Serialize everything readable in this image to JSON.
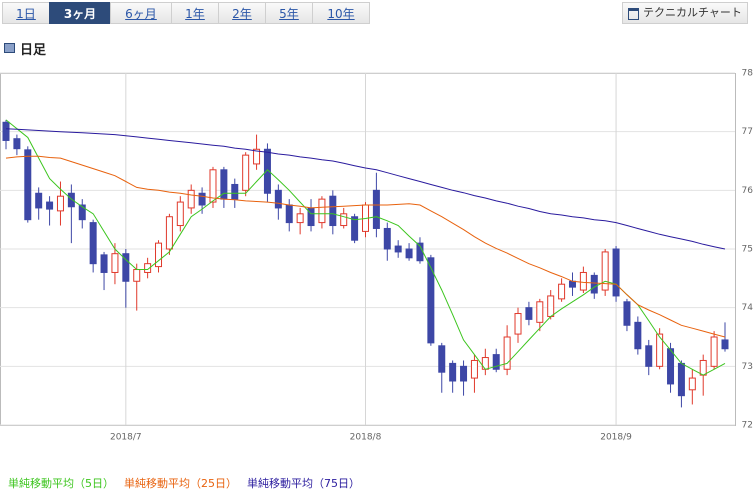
{
  "ui": {
    "tabs": [
      "1日",
      "3ヶ月",
      "6ヶ月",
      "1年",
      "2年",
      "5年",
      "10年"
    ],
    "active_tab": 1,
    "technical_button": "テクニカルチャート",
    "section": "日足"
  },
  "chart_data": {
    "type": "candlestick",
    "categories": [
      null,
      null,
      null,
      null,
      null,
      null,
      null,
      null,
      null,
      null,
      null,
      "2018/7",
      null,
      null,
      null,
      null,
      null,
      null,
      null,
      null,
      null,
      null,
      null,
      null,
      null,
      null,
      null,
      null,
      null,
      null,
      null,
      null,
      null,
      "2018/8",
      null,
      null,
      null,
      null,
      null,
      null,
      null,
      null,
      null,
      null,
      null,
      null,
      null,
      null,
      null,
      null,
      null,
      null,
      null,
      null,
      null,
      null,
      "2018/9",
      null,
      null,
      null,
      null,
      null,
      null,
      null,
      null,
      null,
      null
    ],
    "open": [
      77.16,
      76.88,
      76.69,
      75.95,
      75.8,
      75.65,
      75.95,
      75.75,
      75.45,
      74.9,
      74.6,
      74.92,
      74.45,
      74.6,
      74.7,
      75.0,
      75.4,
      75.7,
      75.95,
      75.8,
      76.35,
      76.1,
      76.0,
      76.45,
      76.7,
      76.0,
      75.75,
      75.45,
      75.7,
      75.45,
      75.9,
      75.4,
      75.55,
      75.3,
      76.0,
      75.35,
      75.05,
      75.0,
      75.1,
      74.85,
      73.35,
      73.05,
      73.0,
      72.8,
      72.95,
      73.2,
      72.95,
      73.55,
      74.0,
      73.75,
      73.85,
      74.15,
      74.45,
      74.3,
      74.55,
      74.3,
      75.0,
      74.1,
      73.75,
      73.35,
      73.0,
      73.3,
      73.05,
      72.6,
      72.85,
      73.0,
      73.45
    ],
    "high": [
      77.2,
      76.95,
      76.75,
      76.05,
      75.9,
      76.15,
      76.1,
      75.85,
      75.5,
      74.95,
      75.1,
      75.0,
      74.75,
      74.85,
      75.15,
      75.6,
      75.9,
      76.1,
      76.05,
      76.4,
      76.4,
      76.2,
      76.65,
      76.95,
      76.8,
      76.1,
      75.85,
      75.7,
      75.85,
      75.9,
      76.0,
      75.7,
      75.6,
      75.8,
      76.3,
      75.45,
      75.15,
      75.1,
      75.2,
      74.9,
      73.4,
      73.1,
      73.1,
      73.2,
      73.3,
      73.3,
      73.7,
      74.0,
      74.1,
      74.15,
      74.3,
      74.5,
      74.6,
      74.7,
      74.6,
      75.0,
      75.05,
      74.15,
      73.85,
      73.45,
      73.65,
      73.4,
      73.1,
      72.95,
      73.2,
      73.6,
      73.75
    ],
    "low": [
      76.7,
      76.6,
      75.45,
      75.5,
      75.4,
      75.4,
      75.1,
      75.35,
      74.6,
      74.3,
      74.4,
      74.0,
      73.95,
      74.5,
      74.6,
      74.9,
      75.3,
      75.6,
      75.6,
      75.7,
      75.7,
      75.7,
      75.9,
      76.35,
      75.8,
      75.5,
      75.3,
      75.25,
      75.3,
      75.35,
      75.25,
      75.35,
      75.1,
      75.2,
      75.2,
      74.8,
      74.85,
      74.8,
      74.75,
      73.35,
      72.55,
      72.55,
      72.5,
      72.55,
      72.85,
      72.9,
      72.85,
      73.4,
      73.7,
      73.6,
      73.8,
      74.1,
      74.2,
      74.25,
      74.15,
      74.2,
      74.1,
      73.6,
      73.2,
      72.85,
      72.95,
      72.55,
      72.3,
      72.35,
      72.5,
      72.95,
      73.25
    ],
    "close": [
      76.85,
      76.71,
      75.5,
      75.7,
      75.68,
      75.9,
      75.72,
      75.5,
      74.75,
      74.6,
      74.92,
      74.45,
      74.65,
      74.75,
      75.1,
      75.55,
      75.8,
      76.0,
      75.75,
      76.35,
      75.85,
      75.85,
      76.6,
      76.7,
      75.95,
      75.7,
      75.45,
      75.6,
      75.4,
      75.85,
      75.4,
      75.6,
      75.15,
      75.75,
      75.35,
      75.0,
      74.95,
      74.85,
      74.8,
      73.4,
      72.9,
      72.75,
      72.75,
      73.1,
      73.15,
      72.95,
      73.5,
      73.9,
      73.8,
      74.1,
      74.2,
      74.4,
      74.35,
      74.6,
      74.25,
      74.95,
      74.2,
      73.7,
      73.3,
      73.0,
      73.55,
      72.7,
      72.5,
      72.8,
      73.1,
      73.5,
      73.3
    ],
    "up_color": "#e0392b",
    "down_color": "#3d47a6",
    "series": [
      {
        "name": "単純移動平均（5日）",
        "color": "#3cc51e",
        "values": [
          77.2,
          77.05,
          76.9,
          76.55,
          76.2,
          76.02,
          75.85,
          75.72,
          75.6,
          75.3,
          75.0,
          74.82,
          74.65,
          74.65,
          74.8,
          74.95,
          75.25,
          75.55,
          75.68,
          75.82,
          75.95,
          75.95,
          75.95,
          76.15,
          76.35,
          76.18,
          76.0,
          75.8,
          75.6,
          75.6,
          75.6,
          75.55,
          75.5,
          75.52,
          75.55,
          75.48,
          75.4,
          75.22,
          75.05,
          74.68,
          74.3,
          73.88,
          73.45,
          73.2,
          72.95,
          73.0,
          73.05,
          73.25,
          73.45,
          73.65,
          73.85,
          73.98,
          74.1,
          74.22,
          74.35,
          74.45,
          74.4,
          74.22,
          74.05,
          73.78,
          73.5,
          73.28,
          73.05,
          72.95,
          72.85,
          72.95,
          73.05
        ]
      },
      {
        "name": "単純移動平均（25日）",
        "color": "#e8620e",
        "values": [
          76.55,
          76.57,
          76.58,
          76.58,
          76.56,
          76.55,
          76.49,
          76.43,
          76.37,
          76.31,
          76.25,
          76.15,
          76.05,
          76.02,
          76.0,
          75.97,
          75.95,
          75.92,
          75.9,
          75.87,
          75.85,
          75.84,
          75.82,
          75.81,
          75.8,
          75.78,
          75.75,
          75.73,
          75.7,
          75.71,
          75.72,
          75.73,
          75.74,
          75.75,
          75.75,
          75.75,
          75.76,
          75.77,
          75.75,
          75.65,
          75.55,
          75.44,
          75.33,
          75.21,
          75.1,
          75.01,
          74.93,
          74.84,
          74.75,
          74.68,
          74.6,
          74.53,
          74.45,
          74.43,
          74.42,
          74.41,
          74.4,
          74.22,
          74.05,
          73.96,
          73.88,
          73.79,
          73.7,
          73.65,
          73.6,
          73.55,
          73.5
        ]
      },
      {
        "name": "単純移動平均（75日）",
        "color": "#2a1b9e",
        "values": [
          77.05,
          77.04,
          77.03,
          77.02,
          77.01,
          77.0,
          76.99,
          76.98,
          76.97,
          76.96,
          76.95,
          76.93,
          76.91,
          76.89,
          76.87,
          76.85,
          76.83,
          76.81,
          76.79,
          76.77,
          76.75,
          76.72,
          76.7,
          76.67,
          76.65,
          76.62,
          76.6,
          76.57,
          76.55,
          76.52,
          76.5,
          76.46,
          76.42,
          76.38,
          76.35,
          76.3,
          76.25,
          76.2,
          76.15,
          76.1,
          76.05,
          76.0,
          75.96,
          75.91,
          75.87,
          75.82,
          75.78,
          75.73,
          75.69,
          75.64,
          75.6,
          75.58,
          75.55,
          75.53,
          75.5,
          75.48,
          75.45,
          75.4,
          75.35,
          75.3,
          75.25,
          75.21,
          75.17,
          75.13,
          75.08,
          75.04,
          75.0
        ]
      }
    ],
    "ylim": [
      72,
      78
    ],
    "yticks": [
      72,
      73,
      74,
      75,
      76,
      77,
      78
    ],
    "grid": true
  }
}
